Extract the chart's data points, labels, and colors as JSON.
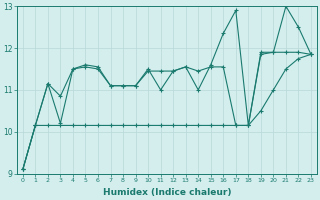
{
  "x": [
    0,
    1,
    2,
    3,
    4,
    5,
    6,
    7,
    8,
    9,
    10,
    11,
    12,
    13,
    14,
    15,
    16,
    17,
    18,
    19,
    20,
    21,
    22,
    23
  ],
  "line1": [
    9.1,
    10.15,
    11.15,
    10.85,
    11.5,
    11.55,
    11.5,
    11.1,
    11.1,
    11.1,
    11.45,
    11.45,
    11.45,
    11.55,
    11.45,
    11.55,
    11.55,
    10.15,
    10.15,
    11.85,
    11.9,
    11.9,
    11.9,
    11.85
  ],
  "line2": [
    9.1,
    10.15,
    11.15,
    10.2,
    11.5,
    11.6,
    11.55,
    11.1,
    11.1,
    11.1,
    11.5,
    11.0,
    11.45,
    11.55,
    11.0,
    11.6,
    12.35,
    12.9,
    10.15,
    11.9,
    11.9,
    13.0,
    12.5,
    11.85
  ],
  "line3": [
    9.1,
    10.15,
    10.15,
    10.15,
    10.15,
    10.15,
    10.15,
    10.15,
    10.15,
    10.15,
    10.15,
    10.15,
    10.15,
    10.15,
    10.15,
    10.15,
    10.15,
    10.15,
    10.15,
    10.5,
    11.0,
    11.5,
    11.75,
    11.85
  ],
  "xlabel": "Humidex (Indice chaleur)",
  "ylabel": "",
  "ylim": [
    9.0,
    13.0
  ],
  "xlim": [
    -0.5,
    23.5
  ],
  "line_color": "#1a7a6e",
  "bg_color": "#d4eeee",
  "grid_color": "#b8d8d8",
  "label_fontsize": 6.5
}
